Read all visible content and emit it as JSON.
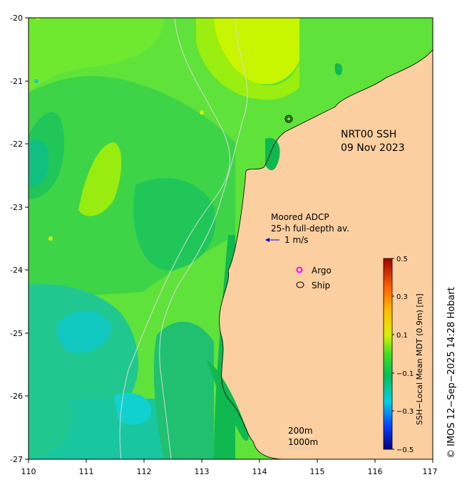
{
  "map": {
    "title_line1": "NRT00 SSH",
    "title_line2": "09 Nov 2023",
    "x_ticks": [
      "110",
      "111",
      "112",
      "113",
      "114",
      "115",
      "116",
      "117"
    ],
    "y_ticks": [
      "-20",
      "-21",
      "-22",
      "-23",
      "-24",
      "-25",
      "-26",
      "-27"
    ],
    "lon_range": [
      110,
      117
    ],
    "lat_range": [
      -27,
      -20
    ],
    "adcp_line1": "Moored ADCP",
    "adcp_line2": "25-h full-depth av.",
    "adcp_scale_label": "1 m/s",
    "legend_argo": "Argo",
    "legend_ship": "Ship",
    "contour_200": "200m",
    "contour_1000": "1000m",
    "land_color": "#fbcfa0",
    "argo_color": "#ff00ff",
    "arrow_color": "#0000cc"
  },
  "colorbar": {
    "label": "SSH−Local Mean MDT (0.9m) [m]",
    "ticks": [
      "0.5",
      "0.3",
      "0.1",
      "−0.1",
      "−0.3",
      "−0.5"
    ],
    "range": [
      -0.5,
      0.5
    ],
    "stops": [
      "#00007f",
      "#0040ff",
      "#00d0e8",
      "#00c060",
      "#40e020",
      "#d8f000",
      "#ffc000",
      "#ff6000",
      "#a00000"
    ]
  },
  "copyright": "© IMOS 12−Sep−2025 14:28 Hobart"
}
